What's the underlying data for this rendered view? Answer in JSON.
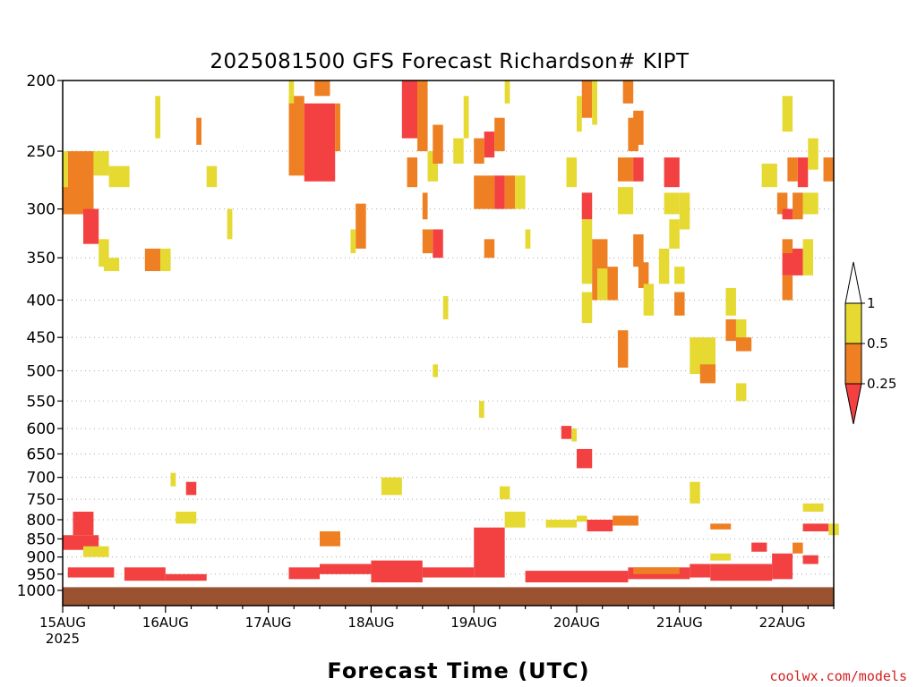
{
  "chart_data": {
    "type": "heatmap",
    "title": "2025081500 GFS Forecast Richardson# KIPT",
    "xlabel": "Forecast Time (UTC)",
    "ylabel": "",
    "credit": "coolwx.com/models",
    "x_start": "2025-08-15 00Z",
    "x_end": "2025-08-22 12Z",
    "x_ticks": [
      {
        "day": 0,
        "label": "15AUG",
        "sub": "2025"
      },
      {
        "day": 1,
        "label": "16AUG",
        "sub": ""
      },
      {
        "day": 2,
        "label": "17AUG",
        "sub": ""
      },
      {
        "day": 3,
        "label": "18AUG",
        "sub": ""
      },
      {
        "day": 4,
        "label": "19AUG",
        "sub": ""
      },
      {
        "day": 5,
        "label": "20AUG",
        "sub": ""
      },
      {
        "day": 6,
        "label": "21AUG",
        "sub": ""
      },
      {
        "day": 7,
        "label": "22AUG",
        "sub": ""
      }
    ],
    "y_axis": {
      "unit": "hPa",
      "scale": "log-pressure",
      "range": [
        1000,
        200
      ],
      "ticks": [
        "200",
        "250",
        "300",
        "350",
        "400",
        "450",
        "500",
        "550",
        "600",
        "650",
        "700",
        "750",
        "800",
        "850",
        "900",
        "950",
        "1000"
      ]
    },
    "grid": "dotted horizontal",
    "legend": {
      "position": "right",
      "levels": [
        {
          "label": "1",
          "color": "#ffffff"
        },
        {
          "label": "0.5",
          "color": "#e5d932"
        },
        {
          "label": "0.25",
          "color": "#ee7f22"
        },
        {
          "label": "",
          "color": "#f34040"
        }
      ]
    },
    "colors": {
      "red": "#f34040",
      "orange": "#ee7f22",
      "yellow": "#e5d932",
      "ground": "#9a5230"
    },
    "ground_below_hPa": 990,
    "cells": [
      {
        "d0": 0.05,
        "d1": 0.3,
        "p0": 250,
        "p1": 300,
        "c": "o"
      },
      {
        "d0": 0.0,
        "d1": 0.05,
        "p0": 250,
        "p1": 290,
        "c": "y"
      },
      {
        "d0": 0.3,
        "d1": 0.45,
        "p0": 250,
        "p1": 270,
        "c": "y"
      },
      {
        "d0": 0.45,
        "d1": 0.65,
        "p0": 262,
        "p1": 280,
        "c": "y"
      },
      {
        "d0": 0.0,
        "d1": 0.3,
        "p0": 280,
        "p1": 305,
        "c": "o"
      },
      {
        "d0": 0.2,
        "d1": 0.35,
        "p0": 300,
        "p1": 335,
        "c": "r"
      },
      {
        "d0": 0.35,
        "d1": 0.45,
        "p0": 330,
        "p1": 360,
        "c": "y"
      },
      {
        "d0": 0.4,
        "d1": 0.55,
        "p0": 350,
        "p1": 365,
        "c": "y"
      },
      {
        "d0": 0.8,
        "d1": 0.95,
        "p0": 340,
        "p1": 365,
        "c": "o"
      },
      {
        "d0": 0.95,
        "d1": 1.05,
        "p0": 340,
        "p1": 365,
        "c": "y"
      },
      {
        "d0": 1.4,
        "d1": 1.5,
        "p0": 262,
        "p1": 280,
        "c": "y"
      },
      {
        "d0": 1.6,
        "d1": 1.65,
        "p0": 300,
        "p1": 330,
        "c": "y"
      },
      {
        "d0": 1.3,
        "d1": 1.35,
        "p0": 225,
        "p1": 245,
        "c": "o"
      },
      {
        "d0": 0.9,
        "d1": 0.95,
        "p0": 210,
        "p1": 240,
        "c": "y"
      },
      {
        "d0": 2.2,
        "d1": 2.35,
        "p0": 210,
        "p1": 270,
        "c": "o"
      },
      {
        "d0": 2.35,
        "d1": 2.65,
        "p0": 215,
        "p1": 275,
        "c": "r"
      },
      {
        "d0": 2.45,
        "d1": 2.6,
        "p0": 200,
        "p1": 210,
        "c": "o"
      },
      {
        "d0": 2.2,
        "d1": 2.25,
        "p0": 200,
        "p1": 215,
        "c": "y"
      },
      {
        "d0": 2.65,
        "d1": 2.7,
        "p0": 215,
        "p1": 250,
        "c": "o"
      },
      {
        "d0": 2.85,
        "d1": 2.95,
        "p0": 295,
        "p1": 340,
        "c": "o"
      },
      {
        "d0": 2.8,
        "d1": 2.85,
        "p0": 320,
        "p1": 345,
        "c": "y"
      },
      {
        "d0": 3.3,
        "d1": 3.45,
        "p0": 200,
        "p1": 240,
        "c": "r"
      },
      {
        "d0": 3.45,
        "d1": 3.55,
        "p0": 200,
        "p1": 250,
        "c": "o"
      },
      {
        "d0": 3.55,
        "d1": 3.65,
        "p0": 250,
        "p1": 275,
        "c": "y"
      },
      {
        "d0": 3.35,
        "d1": 3.45,
        "p0": 255,
        "p1": 280,
        "c": "o"
      },
      {
        "d0": 3.6,
        "d1": 3.7,
        "p0": 320,
        "p1": 350,
        "c": "r"
      },
      {
        "d0": 3.5,
        "d1": 3.6,
        "p0": 320,
        "p1": 345,
        "c": "o"
      },
      {
        "d0": 3.7,
        "d1": 3.75,
        "p0": 395,
        "p1": 425,
        "c": "y"
      },
      {
        "d0": 3.5,
        "d1": 3.55,
        "p0": 285,
        "p1": 310,
        "c": "o"
      },
      {
        "d0": 3.6,
        "d1": 3.7,
        "p0": 230,
        "p1": 260,
        "c": "o"
      },
      {
        "d0": 4.0,
        "d1": 4.2,
        "p0": 270,
        "p1": 300,
        "c": "o"
      },
      {
        "d0": 4.2,
        "d1": 4.3,
        "p0": 270,
        "p1": 300,
        "c": "r"
      },
      {
        "d0": 4.3,
        "d1": 4.4,
        "p0": 270,
        "p1": 300,
        "c": "o"
      },
      {
        "d0": 4.4,
        "d1": 4.5,
        "p0": 270,
        "p1": 300,
        "c": "y"
      },
      {
        "d0": 4.0,
        "d1": 4.1,
        "p0": 240,
        "p1": 260,
        "c": "o"
      },
      {
        "d0": 4.1,
        "d1": 4.2,
        "p0": 235,
        "p1": 255,
        "c": "r"
      },
      {
        "d0": 4.2,
        "d1": 4.3,
        "p0": 225,
        "p1": 250,
        "c": "o"
      },
      {
        "d0": 3.8,
        "d1": 3.9,
        "p0": 240,
        "p1": 260,
        "c": "y"
      },
      {
        "d0": 3.9,
        "d1": 3.95,
        "p0": 210,
        "p1": 240,
        "c": "y"
      },
      {
        "d0": 4.5,
        "d1": 4.55,
        "p0": 320,
        "p1": 340,
        "c": "y"
      },
      {
        "d0": 4.3,
        "d1": 4.35,
        "p0": 200,
        "p1": 215,
        "c": "y"
      },
      {
        "d0": 4.1,
        "d1": 4.2,
        "p0": 330,
        "p1": 350,
        "c": "o"
      },
      {
        "d0": 4.9,
        "d1": 5.0,
        "p0": 255,
        "p1": 280,
        "c": "y"
      },
      {
        "d0": 5.05,
        "d1": 5.15,
        "p0": 200,
        "p1": 225,
        "c": "o"
      },
      {
        "d0": 5.0,
        "d1": 5.05,
        "p0": 210,
        "p1": 235,
        "c": "y"
      },
      {
        "d0": 5.15,
        "d1": 5.2,
        "p0": 200,
        "p1": 230,
        "c": "y"
      },
      {
        "d0": 5.05,
        "d1": 5.15,
        "p0": 285,
        "p1": 310,
        "c": "r"
      },
      {
        "d0": 5.05,
        "d1": 5.15,
        "p0": 310,
        "p1": 380,
        "c": "y"
      },
      {
        "d0": 5.15,
        "d1": 5.3,
        "p0": 330,
        "p1": 400,
        "c": "o"
      },
      {
        "d0": 5.3,
        "d1": 5.4,
        "p0": 360,
        "p1": 400,
        "c": "o"
      },
      {
        "d0": 5.2,
        "d1": 5.3,
        "p0": 362,
        "p1": 400,
        "c": "y"
      },
      {
        "d0": 5.05,
        "d1": 5.15,
        "p0": 390,
        "p1": 430,
        "c": "y"
      },
      {
        "d0": 5.4,
        "d1": 5.55,
        "p0": 255,
        "p1": 275,
        "c": "o"
      },
      {
        "d0": 5.55,
        "d1": 5.65,
        "p0": 255,
        "p1": 275,
        "c": "r"
      },
      {
        "d0": 5.4,
        "d1": 5.55,
        "p0": 280,
        "p1": 305,
        "c": "y"
      },
      {
        "d0": 5.55,
        "d1": 5.65,
        "p0": 220,
        "p1": 245,
        "c": "o"
      },
      {
        "d0": 5.45,
        "d1": 5.55,
        "p0": 200,
        "p1": 215,
        "c": "o"
      },
      {
        "d0": 5.5,
        "d1": 5.6,
        "p0": 225,
        "p1": 250,
        "c": "o"
      },
      {
        "d0": 5.55,
        "d1": 5.65,
        "p0": 325,
        "p1": 360,
        "c": "o"
      },
      {
        "d0": 5.6,
        "d1": 5.7,
        "p0": 355,
        "p1": 385,
        "c": "o"
      },
      {
        "d0": 5.65,
        "d1": 5.75,
        "p0": 380,
        "p1": 420,
        "c": "y"
      },
      {
        "d0": 5.8,
        "d1": 5.9,
        "p0": 340,
        "p1": 380,
        "c": "y"
      },
      {
        "d0": 5.85,
        "d1": 6.0,
        "p0": 255,
        "p1": 280,
        "c": "r"
      },
      {
        "d0": 6.0,
        "d1": 6.1,
        "p0": 285,
        "p1": 320,
        "c": "y"
      },
      {
        "d0": 5.85,
        "d1": 6.0,
        "p0": 285,
        "p1": 305,
        "c": "y"
      },
      {
        "d0": 5.9,
        "d1": 6.0,
        "p0": 310,
        "p1": 340,
        "c": "y"
      },
      {
        "d0": 5.95,
        "d1": 6.05,
        "p0": 390,
        "p1": 420,
        "c": "o"
      },
      {
        "d0": 6.1,
        "d1": 6.35,
        "p0": 450,
        "p1": 505,
        "c": "y"
      },
      {
        "d0": 6.2,
        "d1": 6.35,
        "p0": 490,
        "p1": 520,
        "c": "o"
      },
      {
        "d0": 6.45,
        "d1": 6.55,
        "p0": 425,
        "p1": 455,
        "c": "o"
      },
      {
        "d0": 6.55,
        "d1": 6.65,
        "p0": 425,
        "p1": 455,
        "c": "y"
      },
      {
        "d0": 6.55,
        "d1": 6.65,
        "p0": 520,
        "p1": 550,
        "c": "y"
      },
      {
        "d0": 6.95,
        "d1": 7.05,
        "p0": 285,
        "p1": 305,
        "c": "o"
      },
      {
        "d0": 7.0,
        "d1": 7.1,
        "p0": 300,
        "p1": 310,
        "c": "r"
      },
      {
        "d0": 7.1,
        "d1": 7.2,
        "p0": 285,
        "p1": 310,
        "c": "o"
      },
      {
        "d0": 7.2,
        "d1": 7.35,
        "p0": 285,
        "p1": 305,
        "c": "y"
      },
      {
        "d0": 7.0,
        "d1": 7.2,
        "p0": 340,
        "p1": 370,
        "c": "r"
      },
      {
        "d0": 7.0,
        "d1": 7.1,
        "p0": 330,
        "p1": 345,
        "c": "o"
      },
      {
        "d0": 7.2,
        "d1": 7.3,
        "p0": 330,
        "p1": 370,
        "c": "y"
      },
      {
        "d0": 7.0,
        "d1": 7.1,
        "p0": 370,
        "p1": 400,
        "c": "o"
      },
      {
        "d0": 7.15,
        "d1": 7.25,
        "p0": 255,
        "p1": 280,
        "c": "r"
      },
      {
        "d0": 7.05,
        "d1": 7.15,
        "p0": 255,
        "p1": 275,
        "c": "o"
      },
      {
        "d0": 7.25,
        "d1": 7.35,
        "p0": 240,
        "p1": 265,
        "c": "y"
      },
      {
        "d0": 7.4,
        "d1": 7.5,
        "p0": 255,
        "p1": 275,
        "c": "o"
      },
      {
        "d0": 6.8,
        "d1": 6.95,
        "p0": 260,
        "p1": 280,
        "c": "y"
      },
      {
        "d0": 7.0,
        "d1": 7.1,
        "p0": 210,
        "p1": 235,
        "c": "y"
      },
      {
        "d0": 6.55,
        "d1": 6.7,
        "p0": 450,
        "p1": 470,
        "c": "o"
      },
      {
        "d0": 6.45,
        "d1": 6.55,
        "p0": 385,
        "p1": 420,
        "c": "y"
      },
      {
        "d0": 5.4,
        "d1": 5.5,
        "p0": 440,
        "p1": 495,
        "c": "o"
      },
      {
        "d0": 5.95,
        "d1": 6.05,
        "p0": 360,
        "p1": 380,
        "c": "y"
      },
      {
        "d0": 5.0,
        "d1": 5.15,
        "p0": 640,
        "p1": 680,
        "c": "r"
      },
      {
        "d0": 3.6,
        "d1": 3.65,
        "p0": 490,
        "p1": 510,
        "c": "y"
      },
      {
        "d0": 4.85,
        "d1": 4.95,
        "p0": 595,
        "p1": 620,
        "c": "r"
      },
      {
        "d0": 4.95,
        "d1": 5.0,
        "p0": 600,
        "p1": 625,
        "c": "y"
      },
      {
        "d0": 4.05,
        "d1": 4.1,
        "p0": 550,
        "p1": 580,
        "c": "y"
      },
      {
        "d0": 1.05,
        "d1": 1.1,
        "p0": 690,
        "p1": 720,
        "c": "y"
      },
      {
        "d0": 1.2,
        "d1": 1.3,
        "p0": 710,
        "p1": 740,
        "c": "r"
      },
      {
        "d0": 3.1,
        "d1": 3.3,
        "p0": 700,
        "p1": 740,
        "c": "y"
      },
      {
        "d0": 4.25,
        "d1": 4.35,
        "p0": 720,
        "p1": 750,
        "c": "y"
      },
      {
        "d0": 6.1,
        "d1": 6.2,
        "p0": 710,
        "p1": 760,
        "c": "y"
      },
      {
        "d0": 0.1,
        "d1": 0.3,
        "p0": 780,
        "p1": 840,
        "c": "r"
      },
      {
        "d0": 0.0,
        "d1": 0.35,
        "p0": 840,
        "p1": 880,
        "c": "r"
      },
      {
        "d0": 0.2,
        "d1": 0.45,
        "p0": 870,
        "p1": 900,
        "c": "y"
      },
      {
        "d0": 0.05,
        "d1": 0.5,
        "p0": 930,
        "p1": 960,
        "c": "r"
      },
      {
        "d0": 0.6,
        "d1": 1.0,
        "p0": 930,
        "p1": 970,
        "c": "r"
      },
      {
        "d0": 1.0,
        "d1": 1.4,
        "p0": 950,
        "p1": 970,
        "c": "r"
      },
      {
        "d0": 1.1,
        "d1": 1.3,
        "p0": 780,
        "p1": 810,
        "c": "y"
      },
      {
        "d0": 2.2,
        "d1": 2.5,
        "p0": 930,
        "p1": 965,
        "c": "r"
      },
      {
        "d0": 2.5,
        "d1": 3.0,
        "p0": 920,
        "p1": 950,
        "c": "r"
      },
      {
        "d0": 2.5,
        "d1": 2.7,
        "p0": 830,
        "p1": 870,
        "c": "o"
      },
      {
        "d0": 3.0,
        "d1": 3.5,
        "p0": 910,
        "p1": 975,
        "c": "r"
      },
      {
        "d0": 3.5,
        "d1": 4.0,
        "p0": 930,
        "p1": 960,
        "c": "r"
      },
      {
        "d0": 4.0,
        "d1": 4.3,
        "p0": 820,
        "p1": 960,
        "c": "r"
      },
      {
        "d0": 4.3,
        "d1": 4.5,
        "p0": 780,
        "p1": 820,
        "c": "y"
      },
      {
        "d0": 4.5,
        "d1": 5.5,
        "p0": 940,
        "p1": 975,
        "c": "r"
      },
      {
        "d0": 5.5,
        "d1": 6.1,
        "p0": 930,
        "p1": 965,
        "c": "r"
      },
      {
        "d0": 6.1,
        "d1": 6.3,
        "p0": 920,
        "p1": 960,
        "c": "r"
      },
      {
        "d0": 6.3,
        "d1": 6.9,
        "p0": 920,
        "p1": 970,
        "c": "r"
      },
      {
        "d0": 6.9,
        "d1": 7.1,
        "p0": 890,
        "p1": 965,
        "c": "r"
      },
      {
        "d0": 6.7,
        "d1": 6.85,
        "p0": 860,
        "p1": 885,
        "c": "r"
      },
      {
        "d0": 7.1,
        "d1": 7.2,
        "p0": 860,
        "p1": 890,
        "c": "o"
      },
      {
        "d0": 7.2,
        "d1": 7.35,
        "p0": 895,
        "p1": 920,
        "c": "r"
      },
      {
        "d0": 7.2,
        "d1": 7.45,
        "p0": 810,
        "p1": 830,
        "c": "r"
      },
      {
        "d0": 7.2,
        "d1": 7.4,
        "p0": 760,
        "p1": 780,
        "c": "y"
      },
      {
        "d0": 7.45,
        "d1": 7.55,
        "p0": 810,
        "p1": 840,
        "c": "y"
      },
      {
        "d0": 5.1,
        "d1": 5.35,
        "p0": 800,
        "p1": 830,
        "c": "r"
      },
      {
        "d0": 5.35,
        "d1": 5.6,
        "p0": 790,
        "p1": 815,
        "c": "o"
      },
      {
        "d0": 5.0,
        "d1": 5.1,
        "p0": 790,
        "p1": 805,
        "c": "y"
      },
      {
        "d0": 5.55,
        "d1": 6.0,
        "p0": 930,
        "p1": 950,
        "c": "o"
      },
      {
        "d0": 4.7,
        "d1": 5.0,
        "p0": 800,
        "p1": 820,
        "c": "y"
      },
      {
        "d0": 6.3,
        "d1": 6.5,
        "p0": 810,
        "p1": 825,
        "c": "o"
      },
      {
        "d0": 6.3,
        "d1": 6.5,
        "p0": 890,
        "p1": 910,
        "c": "y"
      }
    ]
  }
}
